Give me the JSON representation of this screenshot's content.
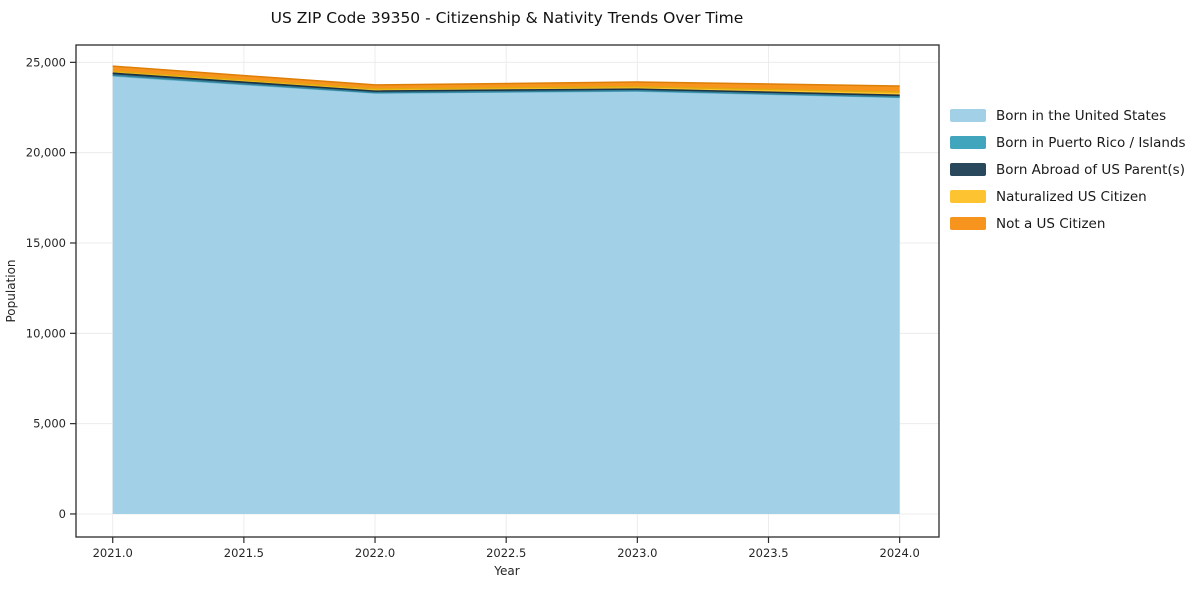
{
  "title": "US ZIP Code 39350 - Citizenship & Nativity Trends Over Time",
  "chart_data": {
    "type": "area",
    "stacked": true,
    "title": "US ZIP Code 39350 - Citizenship & Nativity Trends Over Time",
    "xlabel": "Year",
    "ylabel": "Population",
    "x": [
      2021,
      2022,
      2023,
      2024
    ],
    "series": [
      {
        "name": "Born in the United States",
        "color": "#A2D1E7",
        "edge_color": "#5FAECB",
        "values": [
          24250,
          23300,
          23410,
          23060
        ]
      },
      {
        "name": "Born in Puerto Rico / Islands",
        "color": "#41A5BD",
        "edge_color": "#328199",
        "values": [
          40,
          30,
          30,
          30
        ]
      },
      {
        "name": "Born Abroad of US Parent(s)",
        "color": "#29485C",
        "edge_color": "#1C3345",
        "values": [
          110,
          80,
          80,
          90
        ]
      },
      {
        "name": "Naturalized US Citizen",
        "color": "#FDC330",
        "edge_color": "#E3A90D",
        "values": [
          110,
          120,
          130,
          170
        ]
      },
      {
        "name": "Not a US Citizen",
        "color": "#F6941E",
        "edge_color": "#DD7E06",
        "values": [
          280,
          220,
          260,
          340
        ]
      }
    ],
    "x_ticks": [
      {
        "v": 2021.0,
        "label": "2021.0"
      },
      {
        "v": 2021.5,
        "label": "2021.5"
      },
      {
        "v": 2022.0,
        "label": "2022.0"
      },
      {
        "v": 2022.5,
        "label": "2022.5"
      },
      {
        "v": 2023.0,
        "label": "2023.0"
      },
      {
        "v": 2023.5,
        "label": "2023.5"
      },
      {
        "v": 2024.0,
        "label": "2024.0"
      }
    ],
    "y_ticks": [
      {
        "v": 0,
        "label": "0"
      },
      {
        "v": 5000,
        "label": "5,000"
      },
      {
        "v": 10000,
        "label": "10,000"
      },
      {
        "v": 15000,
        "label": "15,000"
      },
      {
        "v": 20000,
        "label": "20,000"
      },
      {
        "v": 25000,
        "label": "25,000"
      }
    ],
    "xlim": [
      2020.86,
      2024.15
    ],
    "ylim": [
      -1275,
      25960
    ],
    "grid": true,
    "grid_color": "#ececec",
    "spine_color": "#2b2b2b",
    "legend_position": "right"
  }
}
